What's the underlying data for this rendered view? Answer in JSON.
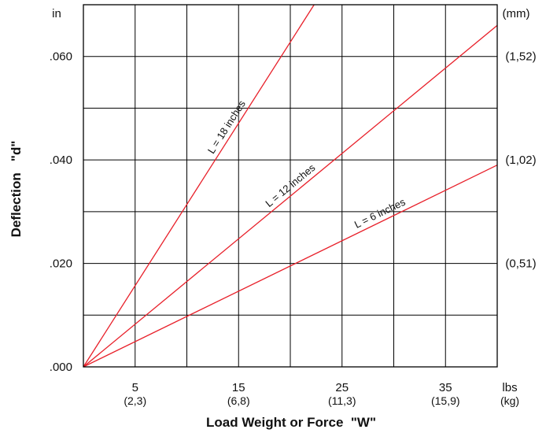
{
  "chart_data": {
    "type": "line",
    "title": "",
    "xlabel": "Load Weight or Force  \"W\"",
    "ylabel": "Deflection   \"d\"",
    "xlim": [
      0,
      40
    ],
    "ylim": [
      0,
      0.07
    ],
    "grid": true,
    "x_grid_lines": [
      0,
      5,
      10,
      15,
      20,
      25,
      30,
      35,
      40
    ],
    "y_grid_lines": [
      0,
      0.01,
      0.02,
      0.03,
      0.04,
      0.05,
      0.06,
      0.07
    ],
    "x_tick_labels": [
      {
        "value": 5,
        "label": "5",
        "sublabel": "(2,3)"
      },
      {
        "value": 15,
        "label": "15",
        "sublabel": "(6,8)"
      },
      {
        "value": 25,
        "label": "25",
        "sublabel": "(11,3)"
      },
      {
        "value": 35,
        "label": "35",
        "sublabel": "(15,9)"
      }
    ],
    "x_unit": "lbs",
    "x_unit_secondary": "(kg)",
    "y_tick_labels": [
      {
        "value": 0,
        "label": ".000"
      },
      {
        "value": 0.02,
        "label": ".020"
      },
      {
        "value": 0.04,
        "label": ".040"
      },
      {
        "value": 0.06,
        "label": ".060"
      }
    ],
    "y_unit": "in",
    "y2_tick_labels": [
      {
        "value": 0.02,
        "label": "(0,51)"
      },
      {
        "value": 0.04,
        "label": "(1,02)"
      },
      {
        "value": 0.06,
        "label": "(1,52)"
      }
    ],
    "y2_unit": "(mm)",
    "series": [
      {
        "name": "L = 18 inches",
        "color": "#e8202a",
        "x": [
          0,
          22.3
        ],
        "y": [
          0,
          0.07
        ],
        "label_at_x": 14.5
      },
      {
        "name": "L = 12 inches",
        "color": "#e8202a",
        "x": [
          0,
          40
        ],
        "y": [
          0,
          0.066
        ],
        "label_at_x": 20.5
      },
      {
        "name": "L = 6 inches",
        "color": "#e8202a",
        "x": [
          0,
          40
        ],
        "y": [
          0,
          0.039
        ],
        "label_at_x": 29
      }
    ]
  }
}
